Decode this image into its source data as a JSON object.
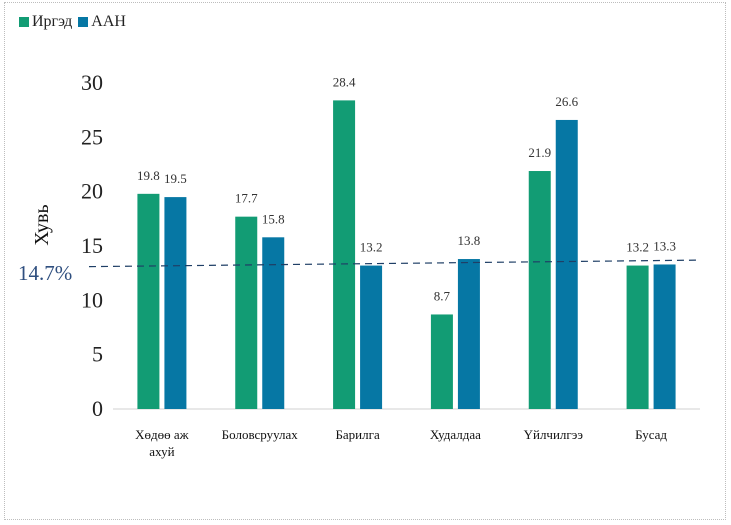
{
  "chart_data": {
    "type": "bar",
    "ylabel": "Хувь",
    "xlabel": "",
    "title": "",
    "ylim": [
      0,
      30
    ],
    "yticks": [
      0,
      5,
      10,
      15,
      20,
      25,
      30
    ],
    "grid": false,
    "legend_position": "top-left",
    "categories": [
      [
        "Хөдөө аж",
        "ахуй"
      ],
      [
        "Боловсруулах"
      ],
      [
        "Барилга"
      ],
      [
        "Худалдаа"
      ],
      [
        "Үйлчилгээ"
      ],
      [
        "Бусад"
      ]
    ],
    "series": [
      {
        "name": "Иргэд",
        "color": "#129c74",
        "values": [
          19.8,
          17.7,
          28.4,
          8.7,
          21.9,
          13.2
        ],
        "labels": [
          "19.8",
          "17.7",
          "28.4",
          "8.7",
          "21.9",
          "13.2"
        ]
      },
      {
        "name": "ААН",
        "color": "#0677a4",
        "values": [
          19.5,
          15.8,
          13.2,
          13.8,
          26.6,
          13.3
        ],
        "labels": [
          "19.5",
          "15.8",
          "13.2",
          "13.8",
          "26.6",
          "13.3"
        ]
      }
    ],
    "reference_line": {
      "label": "14.7%",
      "color": "#1f3f66",
      "style": "dashed"
    }
  }
}
